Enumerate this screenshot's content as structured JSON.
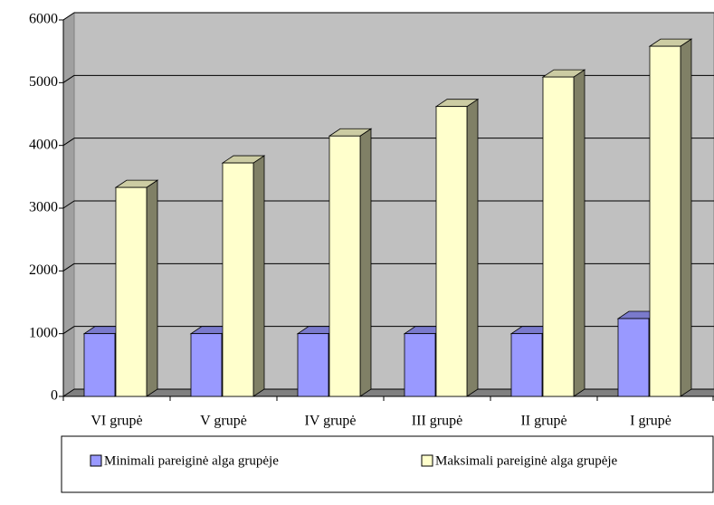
{
  "chart_data": {
    "type": "bar",
    "categories": [
      "VI grupė",
      "V grupė",
      "IV grupė",
      "III grupė",
      "II grupė",
      "I grupė"
    ],
    "series": [
      {
        "name": "Minimali pareiginė alga grupėje",
        "color": "#9999ff",
        "values": [
          1000,
          1000,
          1000,
          1000,
          1000,
          1240
        ]
      },
      {
        "name": "Maksimali pareiginė alga grupėje",
        "color": "#ffffcc",
        "values": [
          3330,
          3720,
          4150,
          4620,
          5090,
          5580
        ]
      }
    ],
    "ylim": [
      0,
      6000
    ],
    "yticks": [
      0,
      1000,
      2000,
      3000,
      4000,
      5000,
      6000
    ],
    "grid": true,
    "legend": "bottom"
  }
}
